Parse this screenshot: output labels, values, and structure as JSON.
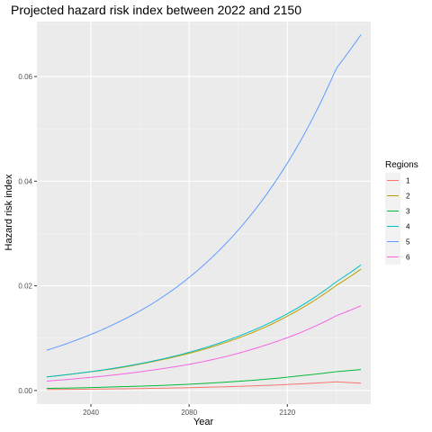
{
  "chart_data": {
    "type": "line",
    "title": "Projected hazard risk index between 2022 and 2150",
    "xlabel": "Year",
    "ylabel": "Hazard risk index",
    "xlim": [
      2018,
      2154
    ],
    "ylim": [
      -0.0026,
      0.0705
    ],
    "x_ticks": [
      2040,
      2080,
      2120
    ],
    "x_tick_labels": [
      "2040",
      "2080",
      "2120"
    ],
    "y_ticks": [
      0,
      0.02,
      0.04,
      0.06
    ],
    "y_tick_labels": [
      "0.00",
      "0.02",
      "0.04",
      "0.06"
    ],
    "grid": true,
    "legend": {
      "title": "Regions",
      "placement": "right"
    },
    "x": [
      2022,
      2035,
      2050,
      2065,
      2080,
      2095,
      2110,
      2125,
      2140,
      2150
    ],
    "series": [
      {
        "name": "1",
        "color": "#F8766D",
        "values": [
          0.00018,
          0.00023,
          0.00031,
          0.00041,
          0.00054,
          0.00072,
          0.00095,
          0.00126,
          0.00166,
          0.0014
        ]
      },
      {
        "name": "2",
        "color": "#B79F00",
        "values": [
          0.0026,
          0.0033,
          0.0042,
          0.0055,
          0.0071,
          0.0092,
          0.0119,
          0.0155,
          0.0201,
          0.0232
        ]
      },
      {
        "name": "3",
        "color": "#00BA38",
        "values": [
          0.0004,
          0.0005,
          0.0007,
          0.0009,
          0.0012,
          0.0016,
          0.0021,
          0.0028,
          0.0036,
          0.004
        ]
      },
      {
        "name": "4",
        "color": "#00BFC4",
        "values": [
          0.0026,
          0.0033,
          0.0043,
          0.0056,
          0.0073,
          0.0095,
          0.0123,
          0.016,
          0.0208,
          0.024
        ]
      },
      {
        "name": "5",
        "color": "#619CFF",
        "values": [
          0.0077,
          0.0098,
          0.0128,
          0.0166,
          0.0216,
          0.0281,
          0.0365,
          0.0474,
          0.0616,
          0.068
        ]
      },
      {
        "name": "6",
        "color": "#F564E3",
        "values": [
          0.0018,
          0.0023,
          0.003,
          0.0039,
          0.005,
          0.0065,
          0.0085,
          0.011,
          0.0143,
          0.0162
        ]
      }
    ]
  }
}
